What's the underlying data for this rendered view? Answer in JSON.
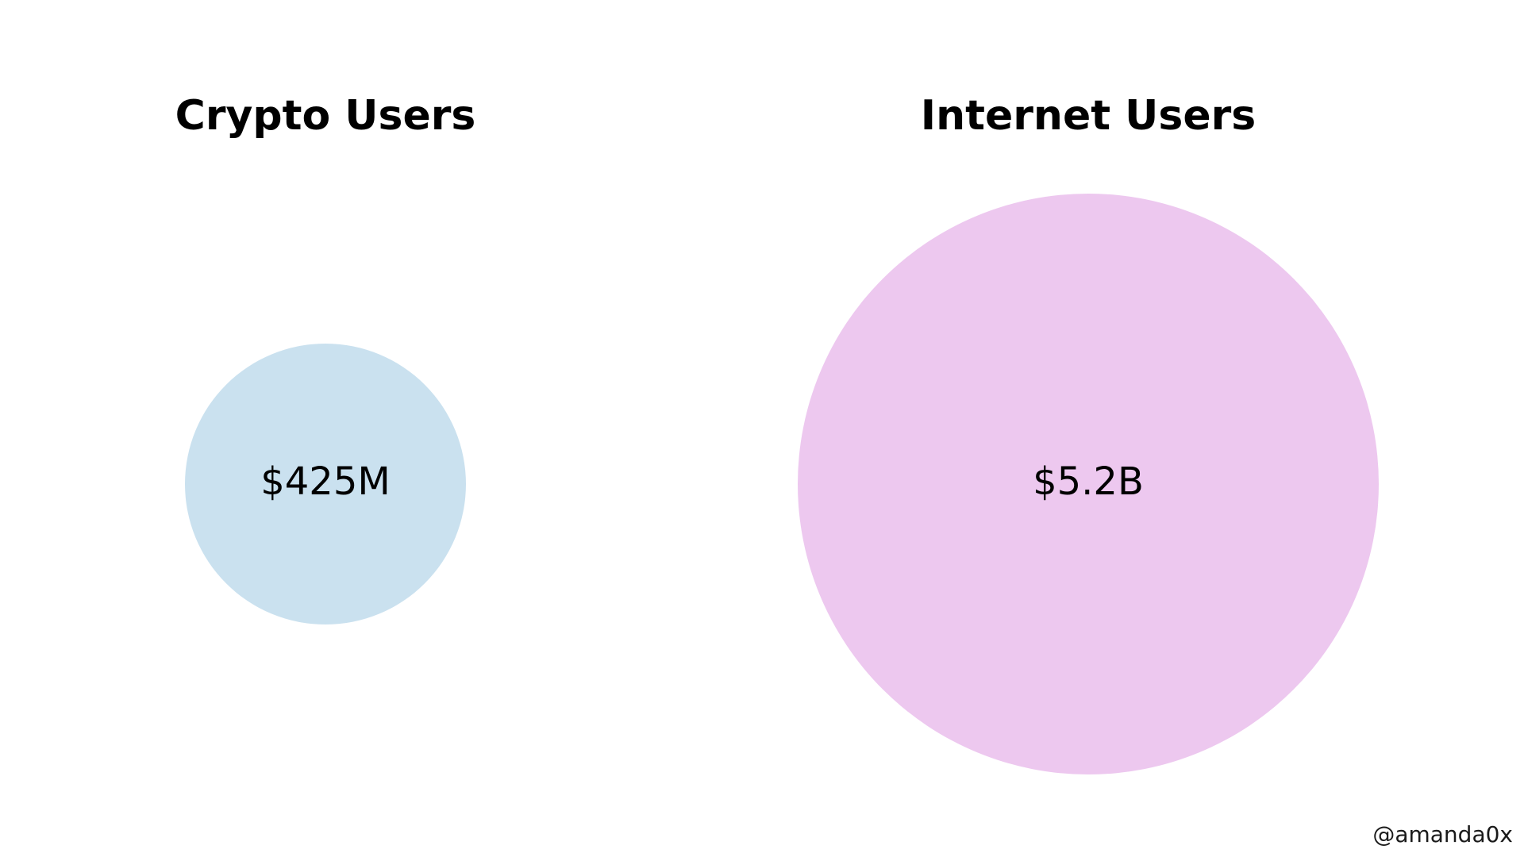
{
  "chart_data": {
    "type": "bubble",
    "items": [
      {
        "name": "Crypto Users",
        "label": "$425M",
        "value": 425000000,
        "color": "#cae1ef"
      },
      {
        "name": "Internet Users",
        "label": "$5.2B",
        "value": 5200000000,
        "color": "#edc8ef"
      }
    ]
  },
  "credit": "@amanda0x"
}
